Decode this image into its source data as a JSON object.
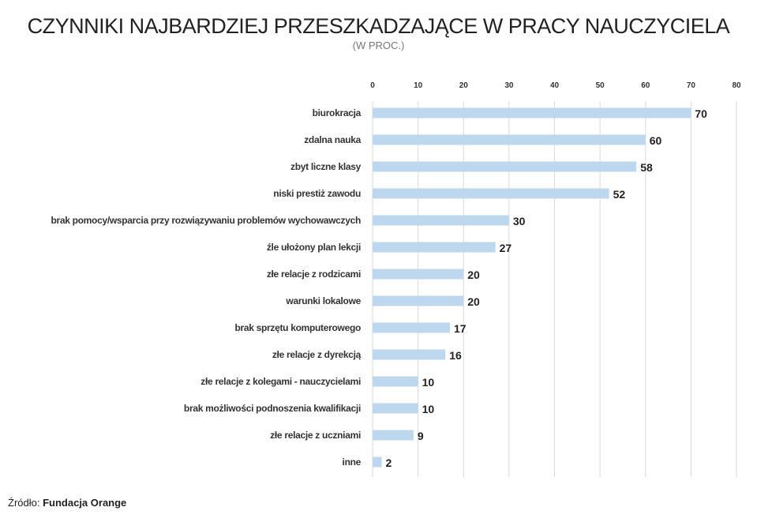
{
  "chart_data": {
    "type": "bar",
    "orientation": "horizontal",
    "title": "CZYNNIKI NAJBARDZIEJ PRZESZKADZAJĄCE W PRACY NAUCZYCIELA",
    "subtitle": "(W PROC.)",
    "categories": [
      "biurokracja",
      "zdalna nauka",
      "zbyt liczne klasy",
      "niski prestiż zawodu",
      "brak pomocy/wsparcia przy rozwiązywaniu problemów wychowawczych",
      "źle ułożony plan lekcji",
      "złe relacje z rodzicami",
      "warunki lokalowe",
      "brak sprzętu komputerowego",
      "złe relacje z dyrekcją",
      "złe relacje z kolegami - nauczycielami",
      "brak możliwości podnoszenia kwalifikacji",
      "złe relacje z uczniami",
      "inne"
    ],
    "values": [
      70,
      60,
      58,
      52,
      30,
      27,
      20,
      20,
      17,
      16,
      10,
      10,
      9,
      2
    ],
    "xlim": [
      0,
      80
    ],
    "xticks": [
      0,
      10,
      20,
      30,
      40,
      50,
      60,
      70,
      80
    ],
    "axis_position": "top",
    "grid": true,
    "legend": "none",
    "bar_color": "#bcd7ee",
    "grid_color": "#d9d9d9"
  },
  "source": {
    "label": "Źródło:",
    "name": "Fundacja Orange"
  }
}
